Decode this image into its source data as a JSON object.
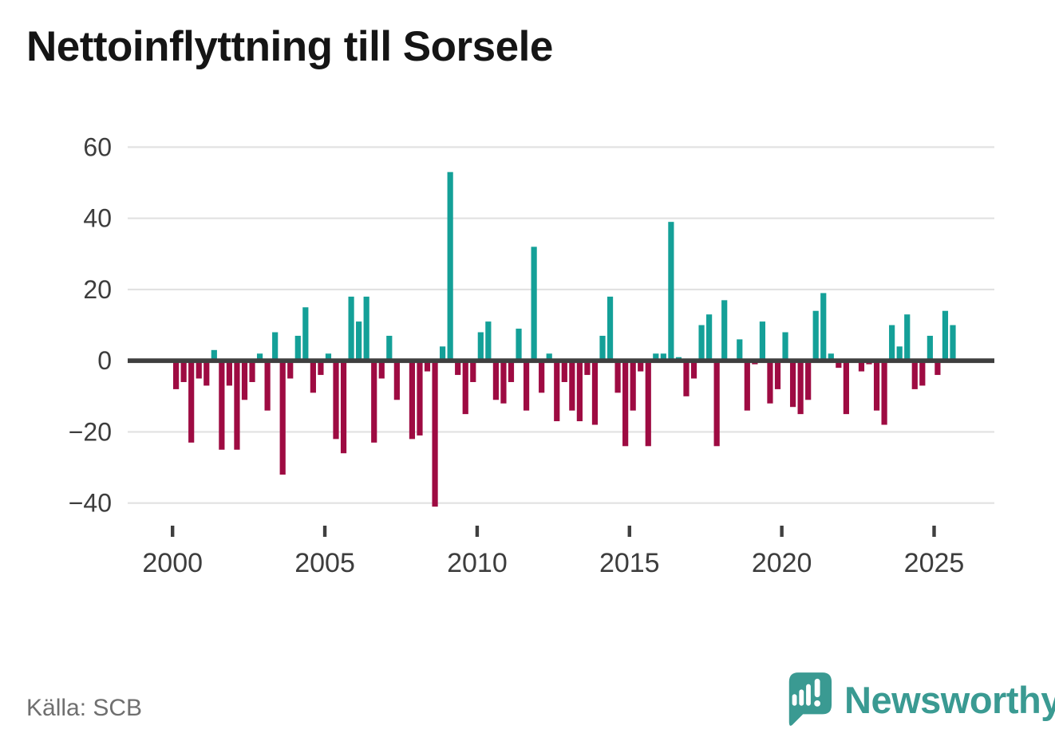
{
  "title": "Nettoinflyttning till Sorsele",
  "source": "Källa: SCB",
  "branding": {
    "wordmark": "Newsworthy",
    "logo_icon": "speech-bubble-bar-chart-icon"
  },
  "chart_data": {
    "type": "bar",
    "title": "Nettoinflyttning till Sorsele",
    "ylabel": "",
    "xlabel": "",
    "unit": "net migration per quarter (persons)",
    "frequency": "quarterly",
    "start_year": 2000,
    "start_quarter": 1,
    "values": [
      -8,
      -6,
      -23,
      -5,
      -7,
      3,
      -25,
      -7,
      -25,
      -11,
      -6,
      2,
      -14,
      8,
      -32,
      -5,
      7,
      15,
      -9,
      -4,
      2,
      -22,
      -26,
      18,
      11,
      18,
      -23,
      -5,
      7,
      -11,
      0,
      -22,
      -21,
      -3,
      -41,
      4,
      53,
      -4,
      -15,
      -6,
      8,
      11,
      -11,
      -12,
      -6,
      9,
      -14,
      32,
      -9,
      2,
      -17,
      -6,
      -14,
      -17,
      -4,
      -18,
      7,
      18,
      -9,
      -24,
      -14,
      -3,
      -24,
      2,
      2,
      39,
      1,
      -10,
      -5,
      10,
      13,
      -24,
      17,
      0,
      6,
      -14,
      -1,
      11,
      -12,
      -8,
      8,
      -13,
      -15,
      -11,
      14,
      19,
      2,
      -2,
      -15,
      0,
      -3,
      -1,
      -14,
      -18,
      10,
      4,
      13,
      -8,
      -7,
      7,
      -4,
      14,
      10
    ],
    "y_ticks": [
      60,
      40,
      20,
      0,
      -20,
      -40
    ],
    "x_tick_years": [
      2000,
      2005,
      2010,
      2015,
      2020,
      2025
    ],
    "ylim": [
      -45,
      62
    ],
    "grid": true,
    "legend": false,
    "colors": {
      "positive": "#14a098",
      "negative": "#9e0b42",
      "zero_line": "#3f3f3f",
      "gridline": "#e2e2e2",
      "axis_text": "#3d3d3d",
      "title_text": "#151515",
      "source_text": "#6f6f6f",
      "brand_teal": "#3a9a92"
    }
  }
}
